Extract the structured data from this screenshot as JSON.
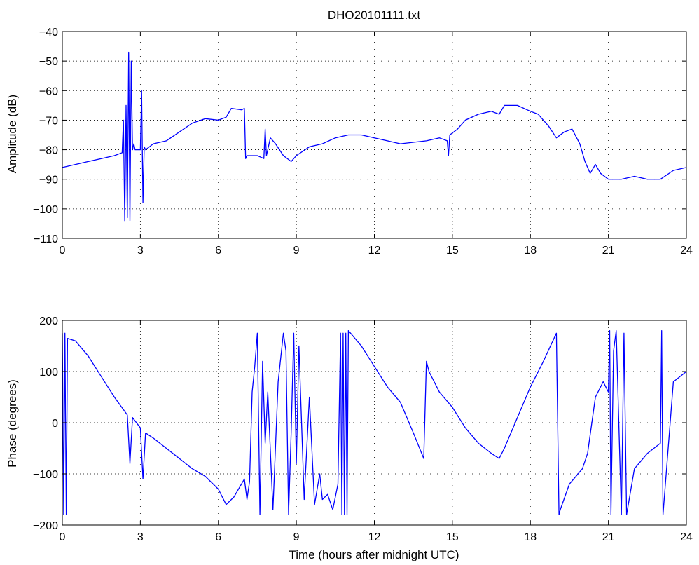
{
  "chart_data": [
    {
      "type": "line",
      "title": "DHO20101111.txt",
      "xlabel": "",
      "ylabel": "Amplitude (dB)",
      "xlim": [
        0,
        24
      ],
      "ylim": [
        -110,
        -40
      ],
      "xticks": [
        "0",
        "3",
        "6",
        "9",
        "12",
        "15",
        "18",
        "21",
        "24"
      ],
      "yticks": [
        "−40",
        "−50",
        "−60",
        "−70",
        "−80",
        "−90",
        "−100",
        "−110"
      ],
      "grid": true,
      "color": "#0000ff",
      "x": [
        0,
        0.5,
        1,
        1.5,
        2,
        2.3,
        2.35,
        2.4,
        2.45,
        2.5,
        2.55,
        2.6,
        2.65,
        2.7,
        2.75,
        2.8,
        3.0,
        3.05,
        3.1,
        3.15,
        3.2,
        3.5,
        4,
        4.5,
        5,
        5.5,
        6,
        6.3,
        6.5,
        6.9,
        7.0,
        7.05,
        7.1,
        7.5,
        7.75,
        7.8,
        7.85,
        8.0,
        8.2,
        8.5,
        8.8,
        9.0,
        9.5,
        10,
        10.5,
        11,
        11.5,
        12,
        12.5,
        13,
        13.5,
        14,
        14.5,
        14.8,
        14.85,
        14.9,
        15.2,
        15.5,
        16,
        16.5,
        16.8,
        17,
        17.5,
        18,
        18.3,
        18.7,
        19,
        19.3,
        19.6,
        19.9,
        20.1,
        20.3,
        20.5,
        20.7,
        21,
        21.5,
        22,
        22.5,
        23,
        23.5,
        24
      ],
      "y": [
        -86,
        -85,
        -84,
        -83,
        -82,
        -81,
        -70,
        -104,
        -65,
        -103,
        -47,
        -104,
        -50,
        -80,
        -78,
        -80,
        -80,
        -60,
        -98,
        -79,
        -80,
        -78,
        -77,
        -74,
        -71,
        -69.5,
        -70,
        -69,
        -66,
        -66.5,
        -66,
        -83,
        -82,
        -82,
        -83,
        -73,
        -82,
        -76,
        -78,
        -82,
        -84,
        -82,
        -79,
        -78,
        -76,
        -75,
        -75,
        -76,
        -77,
        -78,
        -77.5,
        -77,
        -76,
        -77,
        -82,
        -75,
        -73,
        -70,
        -68,
        -67,
        -68,
        -65,
        -65,
        -67,
        -68,
        -72,
        -76,
        -74,
        -73,
        -78,
        -84,
        -88,
        -85,
        -88,
        -90,
        -90,
        -89,
        -90,
        -90,
        -87,
        -86
      ]
    },
    {
      "type": "line",
      "title": "",
      "xlabel": "Time (hours after midnight UTC)",
      "ylabel": "Phase (degrees)",
      "xlim": [
        0,
        24
      ],
      "ylim": [
        -200,
        200
      ],
      "xticks": [
        "0",
        "3",
        "6",
        "9",
        "12",
        "15",
        "18",
        "21",
        "24"
      ],
      "yticks": [
        "200",
        "100",
        "0",
        "−100",
        "−200"
      ],
      "grid": true,
      "color": "#0000ff",
      "x": [
        0,
        0.05,
        0.1,
        0.15,
        0.2,
        0.5,
        1,
        1.5,
        2,
        2.5,
        2.6,
        2.7,
        3,
        3.1,
        3.2,
        3.5,
        4,
        4.5,
        5,
        5.5,
        6,
        6.3,
        6.6,
        7.0,
        7.1,
        7.2,
        7.3,
        7.4,
        7.5,
        7.6,
        7.7,
        7.8,
        7.9,
        8.1,
        8.3,
        8.5,
        8.6,
        8.7,
        8.8,
        8.9,
        9.0,
        9.1,
        9.3,
        9.5,
        9.7,
        9.9,
        10,
        10.2,
        10.4,
        10.6,
        10.7,
        10.75,
        10.8,
        10.85,
        10.9,
        10.95,
        11.0,
        11.5,
        12,
        12.5,
        13,
        13.5,
        13.9,
        14.0,
        14.1,
        14.5,
        15,
        15.5,
        16,
        16.5,
        16.8,
        17,
        17.5,
        18,
        18.5,
        19,
        19.1,
        19.15,
        19.5,
        20,
        20.2,
        20.5,
        20.8,
        21,
        21.05,
        21.1,
        21.2,
        21.3,
        21.5,
        21.6,
        21.7,
        21.8,
        22,
        22.5,
        23,
        23.05,
        23.1,
        23.5,
        24
      ],
      "y": [
        175,
        -180,
        175,
        -180,
        165,
        160,
        130,
        90,
        50,
        15,
        -80,
        10,
        -10,
        -110,
        -20,
        -30,
        -50,
        -70,
        -90,
        -105,
        -130,
        -160,
        -145,
        -110,
        -150,
        -115,
        60,
        110,
        175,
        -180,
        120,
        -40,
        60,
        -170,
        80,
        175,
        140,
        -180,
        -20,
        175,
        -80,
        150,
        -150,
        50,
        -160,
        -100,
        -150,
        -140,
        -170,
        -120,
        175,
        -180,
        175,
        -180,
        175,
        -180,
        180,
        150,
        110,
        70,
        40,
        -20,
        -70,
        120,
        100,
        60,
        30,
        -10,
        -40,
        -60,
        -70,
        -50,
        10,
        70,
        120,
        175,
        -180,
        -170,
        -120,
        -90,
        -60,
        50,
        80,
        60,
        180,
        -180,
        140,
        180,
        -180,
        175,
        -180,
        -150,
        -90,
        -60,
        -40,
        180,
        -180,
        80,
        100
      ]
    }
  ]
}
